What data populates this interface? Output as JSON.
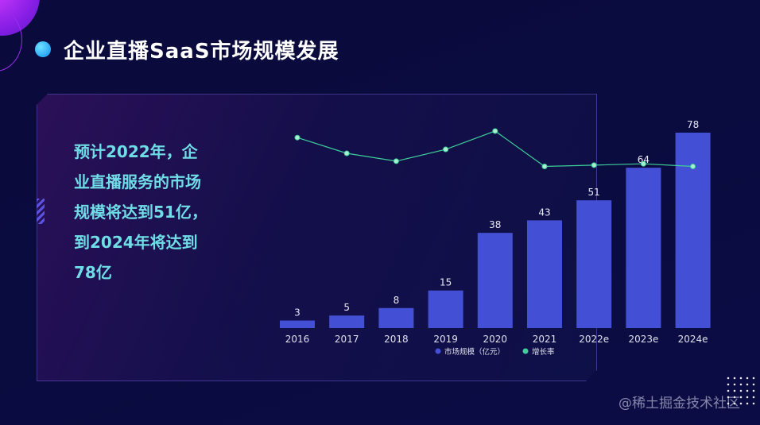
{
  "title": "企业直播SaaS市场规模发展",
  "summary_lines": [
    "预计2022年，企",
    "业直播服务的市场",
    "规模将达到51亿，",
    "到2024年将达到",
    "78亿"
  ],
  "watermark": "@稀土掘金技术社区",
  "colors": {
    "bar": "#4350d6",
    "line": "#3ecf9a",
    "summary_text": "#6fdde6",
    "title_text": "#ffffff"
  },
  "chart_data": {
    "type": "bar",
    "categories": [
      "2016",
      "2017",
      "2018",
      "2019",
      "2020",
      "2021",
      "2022e",
      "2023e",
      "2024e"
    ],
    "series": [
      {
        "name": "市场规模（亿元）",
        "type": "bar",
        "values": [
          3,
          5,
          8,
          15,
          38,
          43,
          51,
          64,
          78
        ]
      },
      {
        "name": "增长率",
        "type": "line",
        "values": [
          0.72,
          0.6,
          0.54,
          0.63,
          0.77,
          0.5,
          0.51,
          0.52,
          0.5
        ]
      }
    ],
    "ylim": [
      0,
      78
    ],
    "legend_position": "bottom",
    "grid": false
  }
}
